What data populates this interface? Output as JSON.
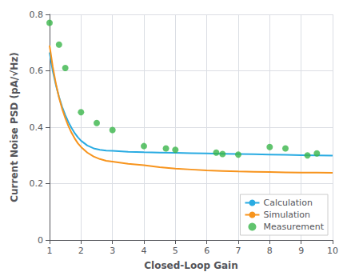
{
  "chart_data": {
    "type": "line",
    "xlabel": "Closed-Loop Gain",
    "ylabel": "Current Noise PSD (pA/√Hz)",
    "xlim": [
      1,
      10
    ],
    "ylim": [
      0,
      0.8
    ],
    "xticks": [
      1,
      2,
      3,
      4,
      5,
      6,
      7,
      8,
      9,
      10
    ],
    "yticks": [
      0,
      0.2,
      0.4,
      0.6,
      0.8
    ],
    "grid": true,
    "legend": "lower right",
    "series": [
      {
        "name": "Calculation",
        "type": "line",
        "color": "#29abe2",
        "x": [
          1.0,
          1.1,
          1.2,
          1.3,
          1.4,
          1.5,
          1.6,
          1.7,
          1.8,
          1.9,
          2.0,
          2.2,
          2.4,
          2.6,
          2.8,
          3.0,
          3.5,
          4.0,
          4.5,
          5.0,
          5.5,
          6.0,
          6.5,
          7.0,
          7.5,
          8.0,
          8.5,
          9.0,
          9.5,
          10.0
        ],
        "values": [
          0.665,
          0.6,
          0.55,
          0.508,
          0.472,
          0.443,
          0.418,
          0.397,
          0.379,
          0.364,
          0.352,
          0.335,
          0.325,
          0.32,
          0.317,
          0.316,
          0.313,
          0.311,
          0.31,
          0.309,
          0.308,
          0.307,
          0.306,
          0.305,
          0.304,
          0.303,
          0.302,
          0.301,
          0.3,
          0.299
        ]
      },
      {
        "name": "Simulation",
        "type": "line",
        "color": "#f7941d",
        "x": [
          1.0,
          1.1,
          1.2,
          1.3,
          1.4,
          1.5,
          1.6,
          1.7,
          1.8,
          1.9,
          2.0,
          2.2,
          2.4,
          2.6,
          2.8,
          3.0,
          3.5,
          4.0,
          4.5,
          5.0,
          5.5,
          6.0,
          6.5,
          7.0,
          7.5,
          8.0,
          8.5,
          9.0,
          9.5,
          10.0
        ],
        "values": [
          0.69,
          0.615,
          0.555,
          0.505,
          0.465,
          0.432,
          0.404,
          0.38,
          0.36,
          0.343,
          0.33,
          0.31,
          0.296,
          0.287,
          0.281,
          0.278,
          0.27,
          0.265,
          0.258,
          0.253,
          0.25,
          0.247,
          0.245,
          0.243,
          0.242,
          0.241,
          0.24,
          0.239,
          0.239,
          0.238
        ]
      },
      {
        "name": "Measurement",
        "type": "scatter",
        "color": "#3ab54a",
        "x": [
          1.0,
          1.3,
          1.5,
          2.0,
          2.5,
          3.0,
          4.0,
          4.7,
          5.0,
          6.3,
          6.5,
          7.0,
          8.0,
          8.5,
          9.2,
          9.5
        ],
        "values": [
          0.77,
          0.693,
          0.61,
          0.453,
          0.415,
          0.39,
          0.333,
          0.325,
          0.32,
          0.31,
          0.305,
          0.303,
          0.33,
          0.325,
          0.3,
          0.307
        ]
      }
    ]
  }
}
